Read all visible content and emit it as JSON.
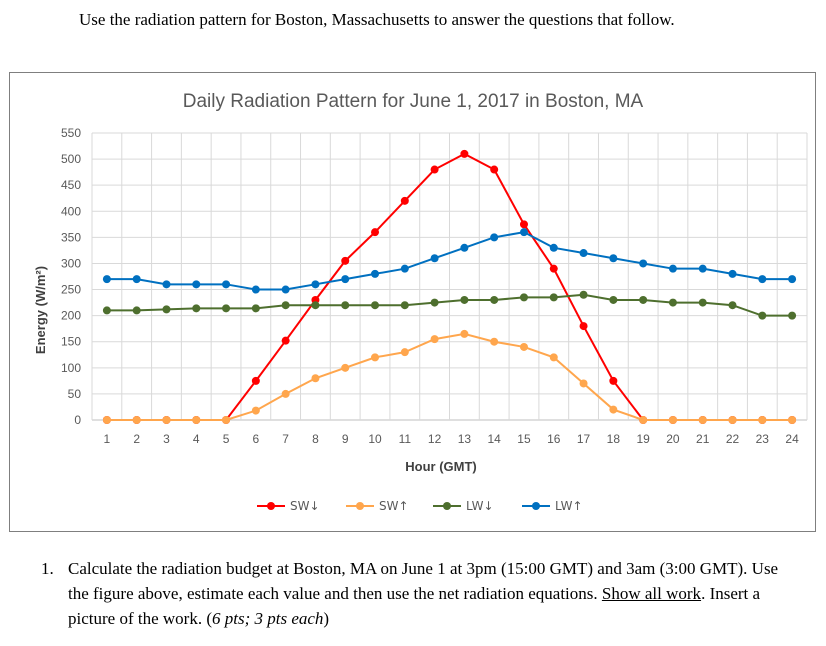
{
  "intro": "Use the radiation pattern for Boston, Massachusetts to answer the questions that follow.",
  "chart_data": {
    "type": "line",
    "title": "Daily Radiation Pattern for June 1, 2017 in Boston, MA",
    "xlabel": "Hour (GMT)",
    "ylabel": "Energy (W/m²)",
    "x": [
      1,
      2,
      3,
      4,
      5,
      6,
      7,
      8,
      9,
      10,
      11,
      12,
      13,
      14,
      15,
      16,
      17,
      18,
      19,
      20,
      21,
      22,
      23,
      24
    ],
    "ylim": [
      0,
      550
    ],
    "yticks": [
      0,
      50,
      100,
      150,
      200,
      250,
      300,
      350,
      400,
      450,
      500,
      550
    ],
    "grid": true,
    "legend_position": "bottom",
    "series": [
      {
        "name": "SW↓",
        "color": "#ff0000",
        "values": [
          0,
          0,
          0,
          0,
          0,
          75,
          152,
          230,
          305,
          360,
          420,
          480,
          510,
          480,
          375,
          290,
          180,
          75,
          0,
          0,
          0,
          0,
          0,
          0
        ]
      },
      {
        "name": "SW↑",
        "color": "#ffa64d",
        "values": [
          0,
          0,
          0,
          0,
          0,
          18,
          50,
          80,
          100,
          120,
          130,
          155,
          165,
          150,
          140,
          120,
          70,
          20,
          0,
          0,
          0,
          0,
          0,
          0
        ]
      },
      {
        "name": "LW↓",
        "color": "#4e6f2e",
        "values": [
          210,
          210,
          212,
          214,
          214,
          214,
          220,
          220,
          220,
          220,
          220,
          225,
          230,
          230,
          235,
          235,
          240,
          230,
          230,
          225,
          225,
          220,
          200,
          200
        ]
      },
      {
        "name": "LW↑",
        "color": "#0070c0",
        "values": [
          270,
          270,
          260,
          260,
          260,
          250,
          250,
          260,
          270,
          280,
          290,
          310,
          330,
          350,
          360,
          330,
          320,
          310,
          300,
          290,
          290,
          280,
          270,
          270
        ]
      }
    ]
  },
  "question": {
    "number": "1.",
    "text_a": "Calculate the radiation budget at Boston, MA on June 1 at 3pm (15:00 GMT) and 3am (3:00 GMT). Use the figure above, estimate each value and then use the net radiation equations.",
    "text_b": "Show all work",
    "text_c": ". Insert a picture of the work. (",
    "text_d": "6 pts; 3 pts each",
    "text_e": ")"
  }
}
